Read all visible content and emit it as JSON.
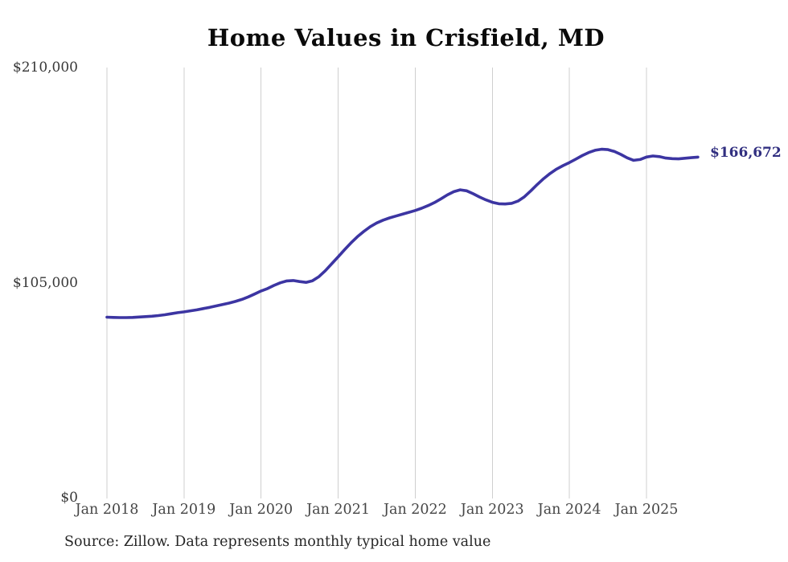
{
  "title": "Home Values in Crisfield, MD",
  "source_note": "Source: Zillow. Data represents monthly typical home value",
  "end_label": "$166,672",
  "colors": {
    "line": "#3c35a2",
    "end_label": "#312f80",
    "grid": "#cfcfcf",
    "axis_text": "#3e3e3e",
    "title_text": "#0a0a0a"
  },
  "chart_data": {
    "type": "line",
    "title": "Home Values in Crisfield, MD",
    "xlabel": "",
    "ylabel": "",
    "ylim": [
      0,
      210000
    ],
    "grid": "vertical-only",
    "legend": "none",
    "x_start": "2018-01",
    "x_end": "2025-09",
    "x_interval": "monthly",
    "x_tick_labels": [
      "Jan 2018",
      "Jan 2019",
      "Jan 2020",
      "Jan 2021",
      "Jan 2022",
      "Jan 2023",
      "Jan 2024",
      "Jan 2025"
    ],
    "y_ticks": [
      {
        "label": "$0",
        "value": 0
      },
      {
        "label": "$105,000",
        "value": 105000
      },
      {
        "label": "$210,000",
        "value": 210000
      }
    ],
    "series": [
      {
        "name": "Typical home value",
        "final_value": 166672,
        "values": [
          88500,
          88400,
          88300,
          88300,
          88400,
          88600,
          88800,
          89000,
          89300,
          89700,
          90200,
          90700,
          91100,
          91600,
          92100,
          92700,
          93300,
          94000,
          94700,
          95400,
          96200,
          97200,
          98400,
          99800,
          101300,
          102500,
          104000,
          105300,
          106200,
          106400,
          105900,
          105500,
          106300,
          108300,
          111200,
          114600,
          118000,
          121500,
          124800,
          127800,
          130400,
          132700,
          134500,
          135900,
          137000,
          137900,
          138800,
          139700,
          140600,
          141700,
          143000,
          144500,
          146300,
          148200,
          149800,
          150700,
          150200,
          148800,
          147200,
          145800,
          144600,
          143900,
          143800,
          144100,
          145200,
          147300,
          150200,
          153300,
          156200,
          158700,
          160800,
          162500,
          164000,
          165700,
          167400,
          168900,
          170000,
          170500,
          170300,
          169400,
          168000,
          166300,
          165100,
          165500,
          166700,
          167200,
          166900,
          166200,
          165900,
          165800,
          166100,
          166400,
          166672
        ]
      }
    ]
  }
}
